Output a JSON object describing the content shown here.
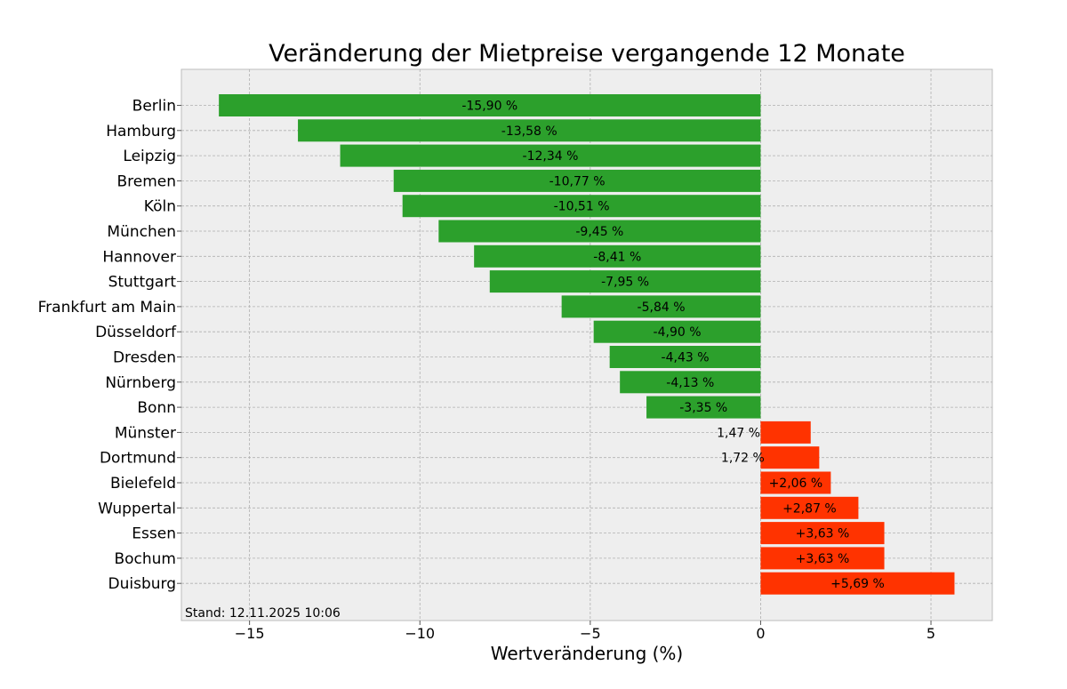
{
  "chart_data": {
    "type": "bar",
    "orientation": "horizontal",
    "title": "Veränderung der Mietpreise vergangende 12 Monate",
    "xlabel": "Wertveränderung (%)",
    "ylabel": "",
    "xlim": [
      -17.0,
      6.8
    ],
    "xticks": [
      -15,
      -10,
      -5,
      0,
      5
    ],
    "xtick_labels": [
      "−15",
      "−10",
      "−5",
      "0",
      "5"
    ],
    "grid": true,
    "footnote": "Stand: 12.11.2025 10:06",
    "colors": {
      "negative": "#2ca02c",
      "positive": "#ff3300",
      "background": "#eeeeee",
      "grid": "#b0b0b0"
    },
    "categories": [
      "Berlin",
      "Hamburg",
      "Leipzig",
      "Bremen",
      "Köln",
      "München",
      "Hannover",
      "Stuttgart",
      "Frankfurt am Main",
      "Düsseldorf",
      "Dresden",
      "Nürnberg",
      "Bonn",
      "Münster",
      "Dortmund",
      "Bielefeld",
      "Wuppertal",
      "Essen",
      "Bochum",
      "Duisburg"
    ],
    "values": [
      -15.9,
      -13.58,
      -12.34,
      -10.77,
      -10.51,
      -9.45,
      -8.41,
      -7.95,
      -5.84,
      -4.9,
      -4.43,
      -4.13,
      -3.35,
      1.47,
      1.72,
      2.06,
      2.87,
      3.63,
      3.63,
      5.69
    ],
    "labels": [
      "-15,90 %",
      "-13,58 %",
      "-12,34 %",
      "-10,77 %",
      "-10,51 %",
      "-9,45 %",
      "-8,41 %",
      "-7,95 %",
      "-5,84 %",
      "-4,90 %",
      "-4,43 %",
      "-4,13 %",
      "-3,35 %",
      "1,47 %",
      "1,72 %",
      "+2,06 %",
      "+2,87 %",
      "+3,63 %",
      "+3,63 %",
      "+5,69 %"
    ]
  }
}
